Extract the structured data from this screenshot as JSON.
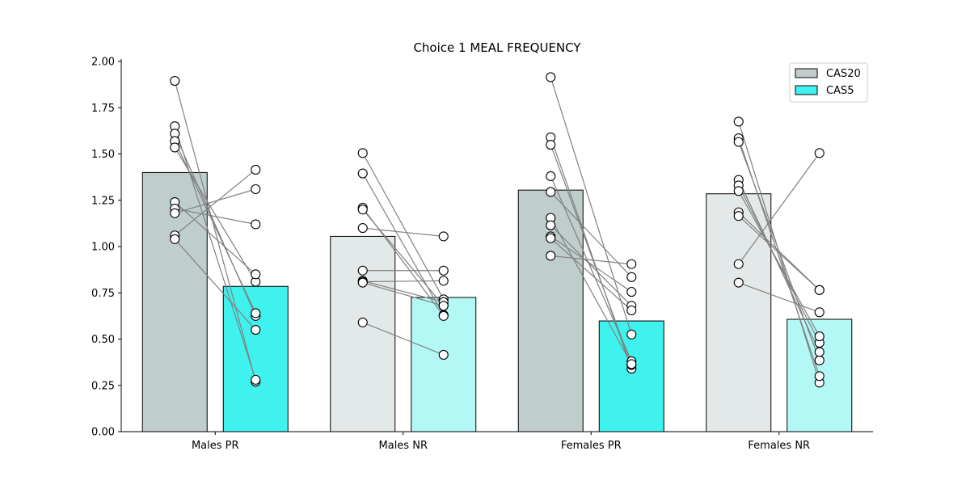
{
  "chart_data": {
    "type": "bar",
    "title": "Choice 1 MEAL FREQUENCY",
    "xlabel": "",
    "ylabel": "",
    "ylim": [
      0,
      2.0
    ],
    "yticks": [
      "0.00",
      "0.25",
      "0.50",
      "0.75",
      "1.00",
      "1.25",
      "1.50",
      "1.75",
      "2.00"
    ],
    "grid": false,
    "legend_position": "top-right",
    "categories": [
      "Males PR",
      "Males NR",
      "Females PR",
      "Females NR"
    ],
    "series": [
      {
        "name": "CAS20",
        "values": [
          1.4,
          1.055,
          1.305,
          1.285
        ]
      },
      {
        "name": "CAS5",
        "values": [
          0.785,
          0.725,
          0.598,
          0.607
        ]
      }
    ],
    "bar_colors": [
      [
        "#bfcdcc",
        "#3ff2ee"
      ],
      [
        "#e3e9e9",
        "#b4f8f6"
      ],
      [
        "#bfcdcc",
        "#3ff2ee"
      ],
      [
        "#e3e9e9",
        "#b4f8f6"
      ]
    ],
    "legend_colors": [
      "#bfcdcc",
      "#3ff2ee"
    ],
    "paired_points": [
      [
        [
          1.895,
          0.27
        ],
        [
          1.65,
          0.28
        ],
        [
          1.61,
          0.625
        ],
        [
          1.57,
          0.64
        ],
        [
          1.535,
          0.81
        ],
        [
          1.24,
          0.85
        ],
        [
          1.205,
          1.12
        ],
        [
          1.18,
          1.31
        ],
        [
          1.06,
          1.415
        ],
        [
          1.04,
          0.55
        ]
      ],
      [
        [
          1.505,
          0.715
        ],
        [
          1.395,
          0.63
        ],
        [
          1.21,
          0.625
        ],
        [
          1.2,
          0.68
        ],
        [
          1.1,
          1.055
        ],
        [
          0.87,
          0.87
        ],
        [
          0.815,
          0.7
        ],
        [
          0.81,
          0.815
        ],
        [
          0.805,
          0.68
        ],
        [
          0.59,
          0.415
        ]
      ],
      [
        [
          1.915,
          0.525
        ],
        [
          1.59,
          0.34
        ],
        [
          1.55,
          0.36
        ],
        [
          1.38,
          0.38
        ],
        [
          1.295,
          0.835
        ],
        [
          1.155,
          0.365
        ],
        [
          1.115,
          0.68
        ],
        [
          1.055,
          0.755
        ],
        [
          1.045,
          0.655
        ],
        [
          0.95,
          0.905
        ]
      ],
      [
        [
          1.675,
          0.265
        ],
        [
          1.585,
          0.3
        ],
        [
          1.565,
          0.385
        ],
        [
          1.36,
          0.43
        ],
        [
          1.33,
          0.48
        ],
        [
          1.3,
          0.515
        ],
        [
          1.185,
          0.765
        ],
        [
          1.165,
          0.765
        ],
        [
          0.905,
          1.505
        ],
        [
          0.805,
          0.645
        ]
      ]
    ]
  }
}
